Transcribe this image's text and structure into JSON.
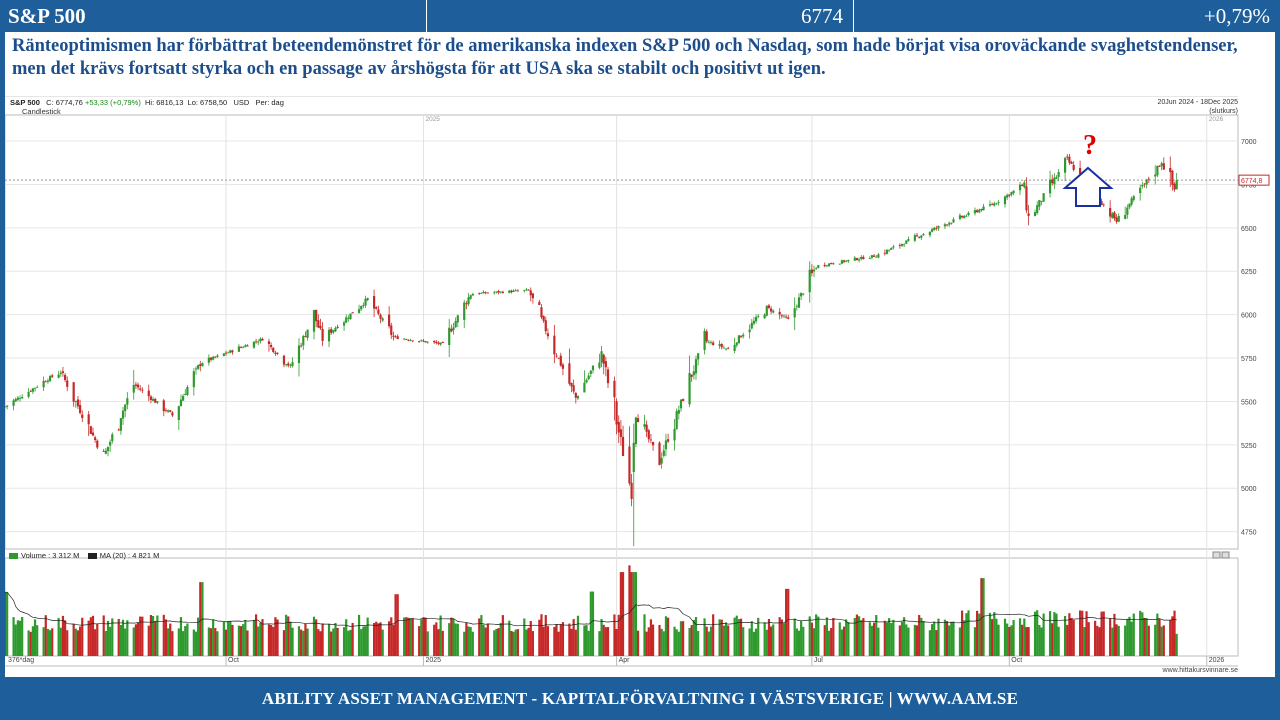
{
  "header": {
    "name": "S&P 500",
    "value": "6774",
    "change": "+0,79%"
  },
  "comment": "Ränteoptimismen har förbättrat beteendemönstret för de amerikanska indexen S&P 500 och Nasdaq, som hade börjat visa oroväckande svaghetstendenser, men det krävs fortsatt styrka och en passage av årshögsta för att USA ska se stabilt och positivt ut igen.",
  "chart_info": {
    "symbol": "S&P 500",
    "close": "C: 6774,76",
    "change": "+53,33 (+0,79%)",
    "high": "Hi: 6816,13",
    "low": "Lo: 6758,50",
    "currency": "USD",
    "period": "Per: dag",
    "style": "Candlestick",
    "range_line1": "20Jun 2024 - 18Dec 2025",
    "range_line2": "(slutkurs)",
    "last_price_label": "6774,8",
    "days_label": "376*dag",
    "watermark": "www.hittakursvinnare.se"
  },
  "volume_info": {
    "volume_label": "Volume : 3 312 M",
    "ma_label": "MA (20) : 4 821 M"
  },
  "annotations": {
    "question": "?"
  },
  "footer": {
    "text": "ABILITY ASSET MANAGEMENT -  KAPITALFÖRVALTNING I VÄSTSVERIGE   |   WWW.AAM.SE"
  },
  "colors": {
    "up": "#2e9a2e",
    "down": "#c62828",
    "brand": "#1d5e9b",
    "question": "#e00000",
    "arrow": "#1a2fa0"
  },
  "chart_data": {
    "type": "candlestick",
    "title": "S&P 500",
    "ylim": [
      4650,
      7150
    ],
    "yticks": [
      4750,
      5000,
      5250,
      5500,
      5750,
      6000,
      6250,
      6500,
      6750,
      7000
    ],
    "ytick_labels": [
      "4750",
      "5000",
      "5250",
      "5500",
      "5750",
      "6000",
      "6250",
      "6500",
      "6750",
      "7000"
    ],
    "x_labels": [
      "Oct",
      "2025",
      "Apr",
      "Jul",
      "Oct",
      "2026"
    ],
    "top_x_labels": [
      "2025",
      "2026"
    ],
    "x_label_dates": [
      "2024-10-01",
      "2025-01-01",
      "2025-04-01",
      "2025-07-01",
      "2025-10-01",
      "2026-01-01"
    ],
    "date_range": [
      "2024-06-20",
      "2025-12-18"
    ],
    "price_path": [
      [
        "2024-06-20",
        5470
      ],
      [
        "2024-07-10",
        5630
      ],
      [
        "2024-07-16",
        5670
      ],
      [
        "2024-08-05",
        5180
      ],
      [
        "2024-08-19",
        5600
      ],
      [
        "2024-09-06",
        5420
      ],
      [
        "2024-09-19",
        5720
      ],
      [
        "2024-10-18",
        5860
      ],
      [
        "2024-10-31",
        5700
      ],
      [
        "2024-11-11",
        6000
      ],
      [
        "2024-11-15",
        5860
      ],
      [
        "2024-12-06",
        6090
      ],
      [
        "2024-12-18",
        5870
      ],
      [
        "2025-01-10",
        5830
      ],
      [
        "2025-01-23",
        6120
      ],
      [
        "2025-02-19",
        6140
      ],
      [
        "2025-03-13",
        5520
      ],
      [
        "2025-03-25",
        5780
      ],
      [
        "2025-04-08",
        4980
      ],
      [
        "2025-04-09",
        5450
      ],
      [
        "2025-04-21",
        5160
      ],
      [
        "2025-05-12",
        5850
      ],
      [
        "2025-05-23",
        5800
      ],
      [
        "2025-06-10",
        6040
      ],
      [
        "2025-06-20",
        5970
      ],
      [
        "2025-07-03",
        6280
      ],
      [
        "2025-07-31",
        6340
      ],
      [
        "2025-08-28",
        6500
      ],
      [
        "2025-09-24",
        6640
      ],
      [
        "2025-10-08",
        6750
      ],
      [
        "2025-10-10",
        6550
      ],
      [
        "2025-10-28",
        6890
      ],
      [
        "2025-11-20",
        6540
      ],
      [
        "2025-12-11",
        6880
      ],
      [
        "2025-12-17",
        6720
      ],
      [
        "2025-12-18",
        6775
      ]
    ],
    "last_close": 6774.76,
    "volume": {
      "label": "Volume",
      "last": "3 312 M",
      "ma_period": 20,
      "ma_last": "4 821 M",
      "spikes": [
        [
          "2024-06-21",
          9.5
        ],
        [
          "2024-09-20",
          11.0
        ],
        [
          "2024-12-20",
          9.2
        ],
        [
          "2025-03-21",
          9.6
        ],
        [
          "2025-04-04",
          12.5
        ],
        [
          "2025-04-07",
          13.5
        ],
        [
          "2025-04-09",
          12.5
        ],
        [
          "2025-06-20",
          10.0
        ],
        [
          "2025-09-19",
          11.6
        ]
      ],
      "typical": 4.8
    }
  }
}
